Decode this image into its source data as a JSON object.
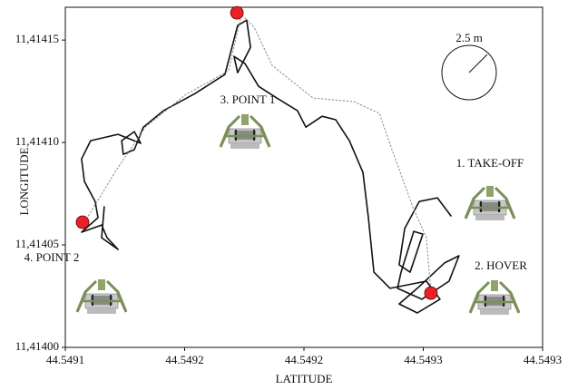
{
  "chart_data": {
    "type": "line",
    "xlabel": "LATITUDE",
    "ylabel": "LONGITUDE",
    "xlim": [
      44.5491,
      44.5493
    ],
    "xticks": [
      {
        "value": 44.5491,
        "label": "44.5491"
      },
      {
        "value": 44.54915,
        "label": "44.5492"
      },
      {
        "value": 44.5492,
        "label": "44.5492"
      },
      {
        "value": 44.54925,
        "label": "44.5493"
      },
      {
        "value": 44.5493,
        "label": "44.5493"
      }
    ],
    "ylim": [
      11.414,
      11.414166
    ],
    "yticks": [
      {
        "value": 11.414,
        "label": "11,41400"
      },
      {
        "value": 11.41405,
        "label": "11,41405"
      },
      {
        "value": 11.4141,
        "label": "11,41410"
      },
      {
        "value": 11.41415,
        "label": "11,41415"
      }
    ],
    "series": [
      {
        "color": "#111111",
        "style": "solid",
        "x": [
          44.5492616,
          44.5492559,
          44.5492483,
          44.5492422,
          44.5492399,
          44.5492445,
          44.5492498,
          44.549246,
          44.5492407,
          44.5492392,
          44.5492494,
          44.5492608,
          44.549265,
          44.5492589,
          44.5492475,
          44.5492399,
          44.5492475,
          44.549257,
          44.5492513,
          44.5492361,
          44.5492293,
          44.549227,
          44.5492247,
          44.549219,
          44.5492133,
          44.5492076,
          44.5492008,
          44.5491973,
          44.5491886,
          44.549181,
          44.5491753,
          44.5491707,
          44.5491722,
          44.5491776,
          44.549176,
          44.5491722,
          44.5491669,
          44.5491544,
          44.5491411,
          44.5491327,
          44.5491289,
          44.5491243,
          44.5491236,
          44.5491289,
          44.5491316,
          44.5491221,
          44.5491106,
          44.5491068,
          44.549108,
          44.5491125,
          44.5491137,
          44.5491068,
          44.5491152,
          44.5491175,
          44.5491221,
          44.5491152,
          44.5491163
        ],
        "y": [
          11.4140642,
          11.414073,
          11.4140712,
          11.414058,
          11.4140403,
          11.4140367,
          11.4140553,
          11.4140566,
          11.4140367,
          11.4140288,
          11.4140235,
          11.4140323,
          11.4140447,
          11.4140412,
          11.4140288,
          11.4140212,
          11.4140168,
          11.4140235,
          11.4140323,
          11.4140288,
          11.4140367,
          11.4140633,
          11.4140854,
          11.4141009,
          11.4141111,
          11.4141128,
          11.4141075,
          11.4141155,
          11.4141217,
          11.4141274,
          11.4141385,
          11.414142,
          11.4141341,
          11.4141465,
          11.4141597,
          11.4141571,
          11.4141332,
          11.4141239,
          11.4141155,
          11.4141075,
          11.4140965,
          11.4140942,
          11.4141009,
          11.4141053,
          11.4140996,
          11.414104,
          11.4141009,
          11.414092,
          11.414081,
          11.4140712,
          11.4140633,
          11.4140562,
          11.4140597,
          11.4140535,
          11.4140478,
          11.4140535,
          11.4140686
        ]
      },
      {
        "color": "#888888",
        "style": "dotted",
        "x": [
          44.5492532,
          44.5492513,
          44.5492456,
          44.5492369,
          44.5492316,
          44.5492209,
          44.5492038,
          44.5491867,
          44.5491791,
          44.5491738,
          44.5491684,
          44.5491506,
          44.5491335,
          44.5491213,
          44.5491087
        ],
        "y": [
          11.414027,
          11.4140535,
          11.4140686,
          11.4140965,
          11.4141142,
          11.4141199,
          11.4141217,
          11.4141376,
          11.4141562,
          11.4141624,
          11.414135,
          11.4141235,
          11.4141075,
          11.4140863,
          11.4140624
        ]
      },
      {
        "color": "#e8202a",
        "style": "markers",
        "x": [
          44.5491072,
          44.5491719,
          44.5492532
        ],
        "y": [
          11.4140611,
          11.4141633,
          11.4140265
        ]
      }
    ],
    "annotations": [
      "1. TAKE-OFF",
      "2. HOVER",
      "3. POINT 1",
      "4. POINT 2"
    ],
    "scale_label": "2.5 m"
  }
}
